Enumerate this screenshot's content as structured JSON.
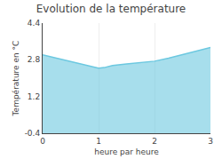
{
  "chart_data": {
    "type": "area",
    "title": "Evolution de la température",
    "x_label": "heure par heure",
    "y_label": "Température en °C",
    "x": [
      0,
      0.25,
      0.5,
      0.75,
      1.0,
      1.1,
      1.25,
      1.5,
      1.75,
      2.0,
      2.25,
      2.5,
      2.75,
      3.0
    ],
    "values": [
      3.02,
      2.88,
      2.72,
      2.58,
      2.44,
      2.46,
      2.55,
      2.62,
      2.67,
      2.74,
      2.87,
      3.02,
      3.17,
      3.34
    ],
    "color": "#6cc8e0",
    "xlim": [
      0,
      3
    ],
    "ylim": [
      -0.4,
      4.4
    ],
    "xticks": [
      0,
      1,
      2,
      3
    ],
    "yticks": [
      -0.4,
      1.2,
      2.8,
      4.4
    ],
    "grid": "x"
  }
}
